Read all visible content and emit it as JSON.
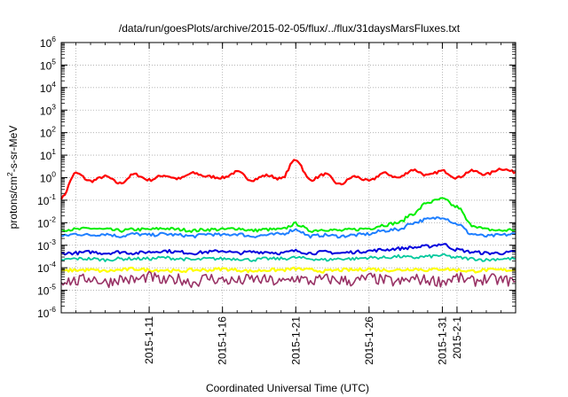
{
  "chart_data": {
    "type": "line",
    "title": "/data/run/goesPlots/archive/2015-02-05/flux/../flux/31daysMarsFluxes.txt",
    "xlabel": "Coordinated Universal Time (UTC)",
    "ylabel": {
      "base": "protons/cm",
      "sup": "2",
      "rest": "-s-sr-MeV"
    },
    "y_scale": "log",
    "ylim_exponent": [
      -6,
      6
    ],
    "y_tick_base": "10",
    "y_tick_exponents": [
      "-6",
      "-5",
      "-4",
      "-3",
      "-2",
      "-1",
      "0",
      "1",
      "2",
      "3",
      "4",
      "5",
      "6"
    ],
    "xlim": [
      "2015-01-05T00:00",
      "2015-02-05T00:00"
    ],
    "x_ticks": [
      {
        "label": "2015-1-11",
        "date": "2015-01-11"
      },
      {
        "label": "2015-1-16",
        "date": "2015-01-16"
      },
      {
        "label": "2015-1-21",
        "date": "2015-01-21"
      },
      {
        "label": "2015-1-26",
        "date": "2015-01-26"
      },
      {
        "label": "2015-1-31",
        "date": "2015-01-31"
      },
      {
        "label": "2015-2-1",
        "date": "2015-02-01"
      }
    ],
    "grid": true,
    "legend": "none",
    "series": [
      {
        "color": "#ff0000",
        "stroke_width": 2.2,
        "x": [
          "2015-01-05",
          "2015-01-06",
          "2015-01-07",
          "2015-01-08",
          "2015-01-09",
          "2015-01-10",
          "2015-01-11",
          "2015-01-12",
          "2015-01-13",
          "2015-01-14",
          "2015-01-15",
          "2015-01-16",
          "2015-01-17",
          "2015-01-18",
          "2015-01-19",
          "2015-01-20",
          "2015-01-21",
          "2015-01-22",
          "2015-01-23",
          "2015-01-24",
          "2015-01-25",
          "2015-01-26",
          "2015-01-27",
          "2015-01-28",
          "2015-01-29",
          "2015-01-30",
          "2015-01-31",
          "2015-02-01",
          "2015-02-02",
          "2015-02-03",
          "2015-02-04",
          "2015-02-05"
        ],
        "log10_y": [
          -0.9,
          0.2,
          -0.15,
          0.05,
          -0.25,
          0.15,
          -0.1,
          0.1,
          -0.05,
          0.2,
          0.05,
          0.0,
          0.25,
          -0.1,
          0.1,
          -0.05,
          0.8,
          -0.1,
          0.15,
          -0.3,
          0.05,
          -0.15,
          0.2,
          0.0,
          0.35,
          0.1,
          0.3,
          0.0,
          0.3,
          0.15,
          0.4,
          0.25
        ]
      },
      {
        "color": "#00ee00",
        "stroke_width": 2.0,
        "x": [
          "2015-01-05",
          "2015-01-06",
          "2015-01-07",
          "2015-01-08",
          "2015-01-09",
          "2015-01-10",
          "2015-01-11",
          "2015-01-12",
          "2015-01-13",
          "2015-01-14",
          "2015-01-15",
          "2015-01-16",
          "2015-01-17",
          "2015-01-18",
          "2015-01-19",
          "2015-01-20",
          "2015-01-21",
          "2015-01-22",
          "2015-01-23",
          "2015-01-24",
          "2015-01-25",
          "2015-01-26",
          "2015-01-27",
          "2015-01-28",
          "2015-01-29",
          "2015-01-30",
          "2015-01-31",
          "2015-02-01",
          "2015-02-02",
          "2015-02-03",
          "2015-02-04",
          "2015-02-05"
        ],
        "log10_y": [
          -2.3,
          -2.3,
          -2.25,
          -2.3,
          -2.35,
          -2.3,
          -2.3,
          -2.25,
          -2.3,
          -2.35,
          -2.3,
          -2.3,
          -2.25,
          -2.35,
          -2.3,
          -2.3,
          -2.05,
          -2.35,
          -2.3,
          -2.35,
          -2.3,
          -2.25,
          -2.1,
          -2.0,
          -1.6,
          -1.1,
          -0.95,
          -1.3,
          -2.1,
          -2.3,
          -2.35,
          -2.3
        ]
      },
      {
        "color": "#1e7fff",
        "stroke_width": 2.0,
        "x": [
          "2015-01-05",
          "2015-01-06",
          "2015-01-07",
          "2015-01-08",
          "2015-01-09",
          "2015-01-10",
          "2015-01-11",
          "2015-01-12",
          "2015-01-13",
          "2015-01-14",
          "2015-01-15",
          "2015-01-16",
          "2015-01-17",
          "2015-01-18",
          "2015-01-19",
          "2015-01-20",
          "2015-01-21",
          "2015-01-22",
          "2015-01-23",
          "2015-01-24",
          "2015-01-25",
          "2015-01-26",
          "2015-01-27",
          "2015-01-28",
          "2015-01-29",
          "2015-01-30",
          "2015-01-31",
          "2015-02-01",
          "2015-02-02",
          "2015-02-03",
          "2015-02-04",
          "2015-02-05"
        ],
        "log10_y": [
          -2.6,
          -2.5,
          -2.55,
          -2.5,
          -2.6,
          -2.5,
          -2.55,
          -2.5,
          -2.55,
          -2.6,
          -2.5,
          -2.55,
          -2.5,
          -2.6,
          -2.55,
          -2.5,
          -2.3,
          -2.6,
          -2.55,
          -2.6,
          -2.55,
          -2.5,
          -2.35,
          -2.3,
          -2.0,
          -1.85,
          -1.75,
          -2.05,
          -2.5,
          -2.6,
          -2.55,
          -2.5
        ]
      },
      {
        "color": "#0000dd",
        "stroke_width": 2.0,
        "x": [
          "2015-01-05",
          "2015-01-06",
          "2015-01-07",
          "2015-01-08",
          "2015-01-09",
          "2015-01-10",
          "2015-01-11",
          "2015-01-12",
          "2015-01-13",
          "2015-01-14",
          "2015-01-15",
          "2015-01-16",
          "2015-01-17",
          "2015-01-18",
          "2015-01-19",
          "2015-01-20",
          "2015-01-21",
          "2015-01-22",
          "2015-01-23",
          "2015-01-24",
          "2015-01-25",
          "2015-01-26",
          "2015-01-27",
          "2015-01-28",
          "2015-01-29",
          "2015-01-30",
          "2015-01-31",
          "2015-02-01",
          "2015-02-02",
          "2015-02-03",
          "2015-02-04",
          "2015-02-05"
        ],
        "log10_y": [
          -3.35,
          -3.35,
          -3.3,
          -3.35,
          -3.3,
          -3.35,
          -3.3,
          -3.25,
          -3.3,
          -3.35,
          -3.3,
          -3.25,
          -3.35,
          -3.3,
          -3.3,
          -3.35,
          -3.25,
          -3.35,
          -3.3,
          -3.35,
          -3.3,
          -3.25,
          -3.2,
          -3.15,
          -3.1,
          -3.05,
          -2.95,
          -3.2,
          -3.3,
          -3.35,
          -3.35,
          -3.3
        ]
      },
      {
        "color": "#00c89c",
        "stroke_width": 1.8,
        "x": [
          "2015-01-05",
          "2015-01-06",
          "2015-01-07",
          "2015-01-08",
          "2015-01-09",
          "2015-01-10",
          "2015-01-11",
          "2015-01-12",
          "2015-01-13",
          "2015-01-14",
          "2015-01-15",
          "2015-01-16",
          "2015-01-17",
          "2015-01-18",
          "2015-01-19",
          "2015-01-20",
          "2015-01-21",
          "2015-01-22",
          "2015-01-23",
          "2015-01-24",
          "2015-01-25",
          "2015-01-26",
          "2015-01-27",
          "2015-01-28",
          "2015-01-29",
          "2015-01-30",
          "2015-01-31",
          "2015-02-01",
          "2015-02-02",
          "2015-02-03",
          "2015-02-04",
          "2015-02-05"
        ],
        "log10_y": [
          -3.65,
          -3.6,
          -3.6,
          -3.65,
          -3.6,
          -3.6,
          -3.6,
          -3.55,
          -3.6,
          -3.65,
          -3.6,
          -3.6,
          -3.6,
          -3.65,
          -3.6,
          -3.6,
          -3.55,
          -3.6,
          -3.65,
          -3.6,
          -3.6,
          -3.55,
          -3.55,
          -3.5,
          -3.55,
          -3.5,
          -3.45,
          -3.55,
          -3.6,
          -3.65,
          -3.6,
          -3.6
        ]
      },
      {
        "color": "#ffff00",
        "stroke_width": 2.2,
        "x": [
          "2015-01-05",
          "2015-01-06",
          "2015-01-07",
          "2015-01-08",
          "2015-01-09",
          "2015-01-10",
          "2015-01-11",
          "2015-01-12",
          "2015-01-13",
          "2015-01-14",
          "2015-01-15",
          "2015-01-16",
          "2015-01-17",
          "2015-01-18",
          "2015-01-19",
          "2015-01-20",
          "2015-01-21",
          "2015-01-22",
          "2015-01-23",
          "2015-01-24",
          "2015-01-25",
          "2015-01-26",
          "2015-01-27",
          "2015-01-28",
          "2015-01-29",
          "2015-01-30",
          "2015-01-31",
          "2015-02-01",
          "2015-02-02",
          "2015-02-03",
          "2015-02-04",
          "2015-02-05"
        ],
        "log10_y": [
          -4.15,
          -4.1,
          -4.1,
          -4.15,
          -4.1,
          -4.05,
          -4.1,
          -4.1,
          -4.15,
          -4.1,
          -4.1,
          -4.05,
          -4.1,
          -4.15,
          -4.1,
          -4.1,
          -4.05,
          -4.1,
          -4.15,
          -4.1,
          -4.1,
          -4.05,
          -4.1,
          -4.1,
          -4.05,
          -4.1,
          -4.05,
          -4.1,
          -4.15,
          -4.1,
          -4.1,
          -4.1
        ]
      },
      {
        "color": "#993366",
        "stroke_width": 1.6,
        "x": [
          "2015-01-05",
          "2015-01-06",
          "2015-01-07",
          "2015-01-08",
          "2015-01-09",
          "2015-01-10",
          "2015-01-11",
          "2015-01-12",
          "2015-01-13",
          "2015-01-14",
          "2015-01-15",
          "2015-01-16",
          "2015-01-17",
          "2015-01-18",
          "2015-01-19",
          "2015-01-20",
          "2015-01-21",
          "2015-01-22",
          "2015-01-23",
          "2015-01-24",
          "2015-01-25",
          "2015-01-26",
          "2015-01-27",
          "2015-01-28",
          "2015-01-29",
          "2015-01-30",
          "2015-01-31",
          "2015-02-01",
          "2015-02-02",
          "2015-02-03",
          "2015-02-04",
          "2015-02-05"
        ],
        "log10_y": [
          -4.55,
          -4.6,
          -4.45,
          -4.65,
          -4.5,
          -4.55,
          -4.4,
          -4.6,
          -4.5,
          -4.65,
          -4.45,
          -4.55,
          -4.6,
          -4.5,
          -4.55,
          -4.65,
          -4.45,
          -4.6,
          -4.5,
          -4.55,
          -4.6,
          -4.45,
          -4.55,
          -4.65,
          -4.5,
          -4.55,
          -4.6,
          -4.45,
          -4.6,
          -4.5,
          -4.55,
          -4.6
        ]
      }
    ]
  }
}
